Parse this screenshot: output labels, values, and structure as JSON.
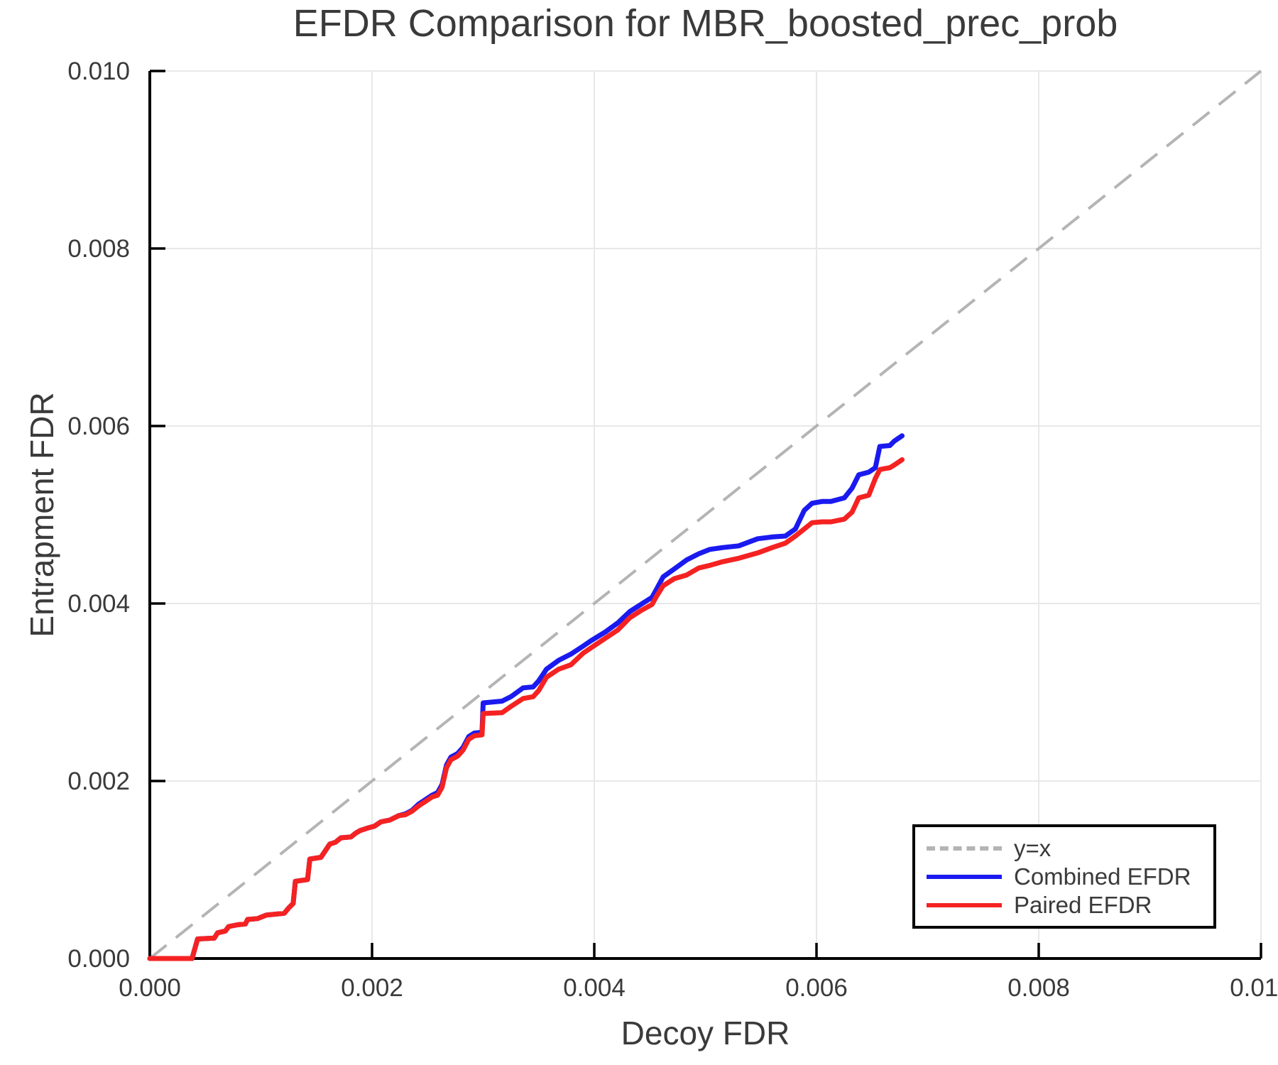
{
  "chart_data": {
    "type": "line",
    "title": "EFDR Comparison for MBR_boosted_prec_prob",
    "xlabel": "Decoy FDR",
    "ylabel": "Entrapment FDR",
    "xlim": [
      0,
      0.01
    ],
    "ylim": [
      0,
      0.01
    ],
    "grid": true,
    "grid_color": "#e8e8e8",
    "spine_color": "#000000",
    "text_color": "#3a3a3a",
    "legend_position": "lower right",
    "xticks": {
      "values": [
        0,
        0.002,
        0.004,
        0.006,
        0.008,
        0.01
      ],
      "labels": [
        "0.000",
        "0.002",
        "0.004",
        "0.006",
        "0.008",
        "0.010"
      ]
    },
    "yticks": {
      "values": [
        0,
        0.002,
        0.004,
        0.006,
        0.008,
        0.01
      ],
      "labels": [
        "0.000",
        "0.002",
        "0.004",
        "0.006",
        "0.008",
        "0.010"
      ]
    },
    "series": [
      {
        "name": "y=x",
        "color": "#b4b4b4",
        "style": "dashed",
        "width": 4,
        "points": [
          [
            0,
            0
          ],
          [
            0.01,
            0.01
          ]
        ]
      },
      {
        "name": "Combined EFDR",
        "color": "#1a1af0",
        "style": "solid",
        "width": 7,
        "points": [
          [
            0,
            0
          ],
          [
            0.00038,
            0
          ],
          [
            0.00043,
            0.00022
          ],
          [
            0.00058,
            0.00023
          ],
          [
            0.00061,
            0.00029
          ],
          [
            0.00068,
            0.00031
          ],
          [
            0.00071,
            0.00036
          ],
          [
            0.00079,
            0.00038
          ],
          [
            0.00086,
            0.00039
          ],
          [
            0.00088,
            0.00044
          ],
          [
            0.00097,
            0.00045
          ],
          [
            0.00105,
            0.00049
          ],
          [
            0.00121,
            0.00051
          ],
          [
            0.00125,
            0.00057
          ],
          [
            0.00129,
            0.00062
          ],
          [
            0.00131,
            0.00087
          ],
          [
            0.00142,
            0.00089
          ],
          [
            0.00144,
            0.00112
          ],
          [
            0.00154,
            0.00114
          ],
          [
            0.00162,
            0.00129
          ],
          [
            0.00167,
            0.00131
          ],
          [
            0.00172,
            0.00136
          ],
          [
            0.00181,
            0.00137
          ],
          [
            0.00185,
            0.00141
          ],
          [
            0.00189,
            0.00144
          ],
          [
            0.00196,
            0.00147
          ],
          [
            0.00202,
            0.00149
          ],
          [
            0.00208,
            0.00154
          ],
          [
            0.00216,
            0.00156
          ],
          [
            0.00224,
            0.00161
          ],
          [
            0.0023,
            0.00163
          ],
          [
            0.00236,
            0.00167
          ],
          [
            0.00242,
            0.00174
          ],
          [
            0.00248,
            0.00179
          ],
          [
            0.00254,
            0.00184
          ],
          [
            0.00259,
            0.00187
          ],
          [
            0.00263,
            0.00196
          ],
          [
            0.00267,
            0.00218
          ],
          [
            0.00271,
            0.00227
          ],
          [
            0.00277,
            0.00231
          ],
          [
            0.00282,
            0.00238
          ],
          [
            0.00287,
            0.0025
          ],
          [
            0.00292,
            0.00254
          ],
          [
            0.00299,
            0.00255
          ],
          [
            0.003,
            0.00288
          ],
          [
            0.00317,
            0.0029
          ],
          [
            0.00325,
            0.00295
          ],
          [
            0.00336,
            0.00305
          ],
          [
            0.00345,
            0.00306
          ],
          [
            0.0035,
            0.00313
          ],
          [
            0.00357,
            0.00326
          ],
          [
            0.00368,
            0.00336
          ],
          [
            0.00379,
            0.00343
          ],
          [
            0.0039,
            0.00352
          ],
          [
            0.00397,
            0.00358
          ],
          [
            0.0041,
            0.00368
          ],
          [
            0.00421,
            0.00378
          ],
          [
            0.00432,
            0.00391
          ],
          [
            0.00442,
            0.00399
          ],
          [
            0.00452,
            0.00407
          ],
          [
            0.00456,
            0.00416
          ],
          [
            0.00462,
            0.0043
          ],
          [
            0.00472,
            0.00439
          ],
          [
            0.00483,
            0.00449
          ],
          [
            0.00494,
            0.00456
          ],
          [
            0.00504,
            0.00461
          ],
          [
            0.00515,
            0.00463
          ],
          [
            0.0053,
            0.00465
          ],
          [
            0.00547,
            0.00473
          ],
          [
            0.0056,
            0.00475
          ],
          [
            0.00572,
            0.00476
          ],
          [
            0.00581,
            0.00484
          ],
          [
            0.00589,
            0.00505
          ],
          [
            0.00596,
            0.00513
          ],
          [
            0.00605,
            0.00515
          ],
          [
            0.00613,
            0.00515
          ],
          [
            0.00625,
            0.00519
          ],
          [
            0.00632,
            0.0053
          ],
          [
            0.00638,
            0.00545
          ],
          [
            0.00647,
            0.00548
          ],
          [
            0.00653,
            0.00553
          ],
          [
            0.00657,
            0.00577
          ],
          [
            0.00666,
            0.00578
          ],
          [
            0.0067,
            0.00583
          ],
          [
            0.00677,
            0.00589
          ]
        ]
      },
      {
        "name": "Paired EFDR",
        "color": "#f52222",
        "style": "solid",
        "width": 7,
        "points": [
          [
            0,
            0
          ],
          [
            0.00038,
            0
          ],
          [
            0.00043,
            0.00022
          ],
          [
            0.00058,
            0.00023
          ],
          [
            0.00061,
            0.00029
          ],
          [
            0.00068,
            0.00031
          ],
          [
            0.00071,
            0.00036
          ],
          [
            0.00079,
            0.00038
          ],
          [
            0.00086,
            0.00039
          ],
          [
            0.00088,
            0.00044
          ],
          [
            0.00097,
            0.00045
          ],
          [
            0.00105,
            0.00049
          ],
          [
            0.00121,
            0.00051
          ],
          [
            0.00125,
            0.00057
          ],
          [
            0.00129,
            0.00062
          ],
          [
            0.00131,
            0.00087
          ],
          [
            0.00142,
            0.00089
          ],
          [
            0.00144,
            0.00112
          ],
          [
            0.00154,
            0.00114
          ],
          [
            0.00162,
            0.00129
          ],
          [
            0.00167,
            0.00131
          ],
          [
            0.00172,
            0.00136
          ],
          [
            0.00181,
            0.00137
          ],
          [
            0.00185,
            0.00141
          ],
          [
            0.00189,
            0.00144
          ],
          [
            0.00196,
            0.00147
          ],
          [
            0.00202,
            0.00149
          ],
          [
            0.00208,
            0.00154
          ],
          [
            0.00216,
            0.00156
          ],
          [
            0.00224,
            0.00161
          ],
          [
            0.0023,
            0.00162
          ],
          [
            0.00236,
            0.00166
          ],
          [
            0.00242,
            0.00172
          ],
          [
            0.00248,
            0.00177
          ],
          [
            0.00254,
            0.00182
          ],
          [
            0.00259,
            0.00184
          ],
          [
            0.00263,
            0.00193
          ],
          [
            0.00267,
            0.00215
          ],
          [
            0.00271,
            0.00224
          ],
          [
            0.00277,
            0.00228
          ],
          [
            0.00282,
            0.00235
          ],
          [
            0.00287,
            0.00247
          ],
          [
            0.00292,
            0.00251
          ],
          [
            0.00299,
            0.00252
          ],
          [
            0.003,
            0.00276
          ],
          [
            0.00317,
            0.00277
          ],
          [
            0.00325,
            0.00284
          ],
          [
            0.00336,
            0.00293
          ],
          [
            0.00345,
            0.00295
          ],
          [
            0.0035,
            0.00302
          ],
          [
            0.00357,
            0.00317
          ],
          [
            0.00368,
            0.00326
          ],
          [
            0.00379,
            0.00331
          ],
          [
            0.0039,
            0.00344
          ],
          [
            0.00397,
            0.0035
          ],
          [
            0.0041,
            0.00361
          ],
          [
            0.00421,
            0.0037
          ],
          [
            0.00432,
            0.00384
          ],
          [
            0.00442,
            0.00392
          ],
          [
            0.00452,
            0.00399
          ],
          [
            0.00456,
            0.00408
          ],
          [
            0.00462,
            0.0042
          ],
          [
            0.00472,
            0.00428
          ],
          [
            0.00483,
            0.00432
          ],
          [
            0.00494,
            0.0044
          ],
          [
            0.00504,
            0.00443
          ],
          [
            0.00515,
            0.00447
          ],
          [
            0.0053,
            0.00451
          ],
          [
            0.00547,
            0.00457
          ],
          [
            0.0056,
            0.00463
          ],
          [
            0.00572,
            0.00468
          ],
          [
            0.00581,
            0.00476
          ],
          [
            0.00589,
            0.00484
          ],
          [
            0.00596,
            0.00491
          ],
          [
            0.00605,
            0.00492
          ],
          [
            0.00613,
            0.00492
          ],
          [
            0.00625,
            0.00495
          ],
          [
            0.00632,
            0.00503
          ],
          [
            0.00638,
            0.00519
          ],
          [
            0.00647,
            0.00522
          ],
          [
            0.00653,
            0.00541
          ],
          [
            0.00657,
            0.00551
          ],
          [
            0.00666,
            0.00553
          ],
          [
            0.0067,
            0.00556
          ],
          [
            0.00677,
            0.00562
          ]
        ]
      }
    ]
  }
}
